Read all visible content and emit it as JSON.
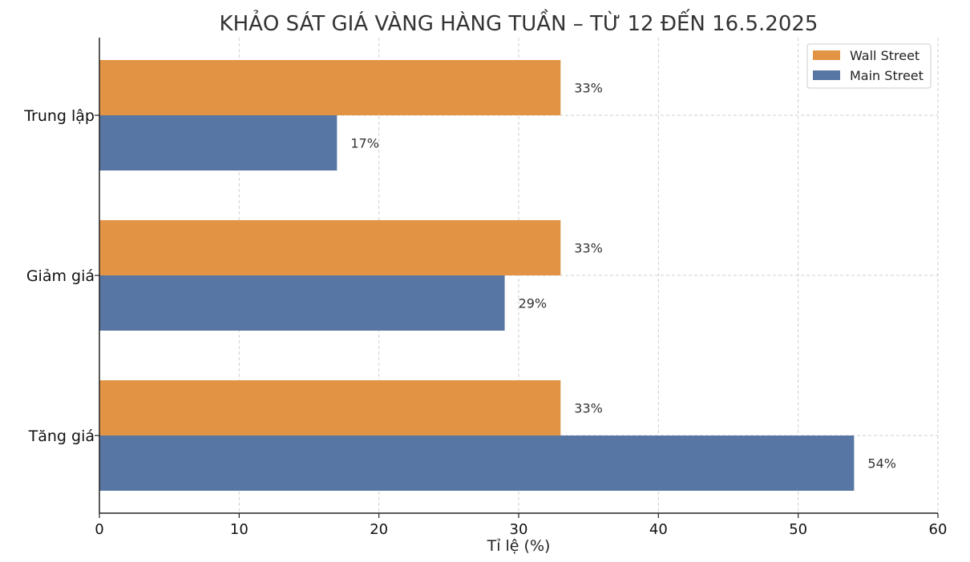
{
  "chart_data": {
    "type": "bar",
    "orientation": "horizontal",
    "title": "KHẢO SÁT GIÁ VÀNG HÀNG TUẦN – TỪ 12 ĐẾN 16.5.2025",
    "xlabel": "Tỉ lệ (%)",
    "ylabel": "",
    "categories": [
      "Trung lập",
      "Giảm giá",
      "Tăng giá"
    ],
    "series": [
      {
        "name": "Wall Street",
        "values": [
          33,
          33,
          33
        ],
        "labels": [
          "33%",
          "33%",
          "33%"
        ],
        "color": "#E29444"
      },
      {
        "name": "Main Street",
        "values": [
          17,
          29,
          54
        ],
        "labels": [
          "17%",
          "29%",
          "54%"
        ],
        "color": "#5876A3"
      }
    ],
    "xlim": [
      0,
      60
    ],
    "xticks": [
      "0",
      "10",
      "20",
      "30",
      "40",
      "50",
      "60"
    ],
    "grid": true,
    "legend_position": "top-right"
  }
}
